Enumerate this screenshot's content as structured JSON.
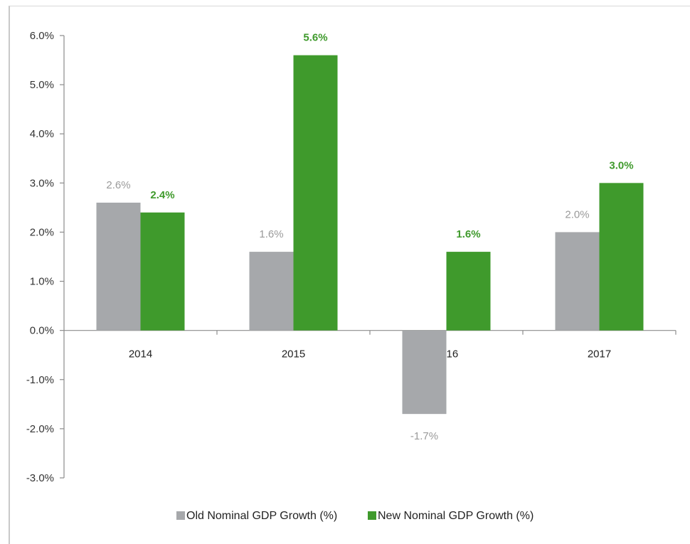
{
  "chart_data": {
    "type": "bar",
    "title": "",
    "xlabel": "",
    "ylabel": "",
    "categories": [
      "2014",
      "2015",
      "2016",
      "2017"
    ],
    "series": [
      {
        "name": "Old Nominal GDP Growth (%)",
        "values": [
          2.6,
          1.6,
          -1.7,
          2.0
        ],
        "labels": [
          "2.6%",
          "1.6%",
          "-1.7%",
          "2.0%"
        ],
        "color": "#a6a8ab"
      },
      {
        "name": "New Nominal GDP  Growth (%)",
        "values": [
          2.4,
          5.6,
          1.6,
          3.0
        ],
        "labels": [
          "2.4%",
          "5.6%",
          "1.6%",
          "3.0%"
        ],
        "color": "#3f9a2c"
      }
    ],
    "ylim": [
      -3.0,
      6.0
    ],
    "yticks": [
      -3.0,
      -2.0,
      -1.0,
      0.0,
      1.0,
      2.0,
      3.0,
      4.0,
      5.0,
      6.0
    ],
    "ytick_labels": [
      "-3.0%",
      "-2.0%",
      "-1.0%",
      "0.0%",
      "1.0%",
      "2.0%",
      "3.0%",
      "4.0%",
      "5.0%",
      "6.0%"
    ],
    "grid": false,
    "legend_position": "bottom"
  }
}
